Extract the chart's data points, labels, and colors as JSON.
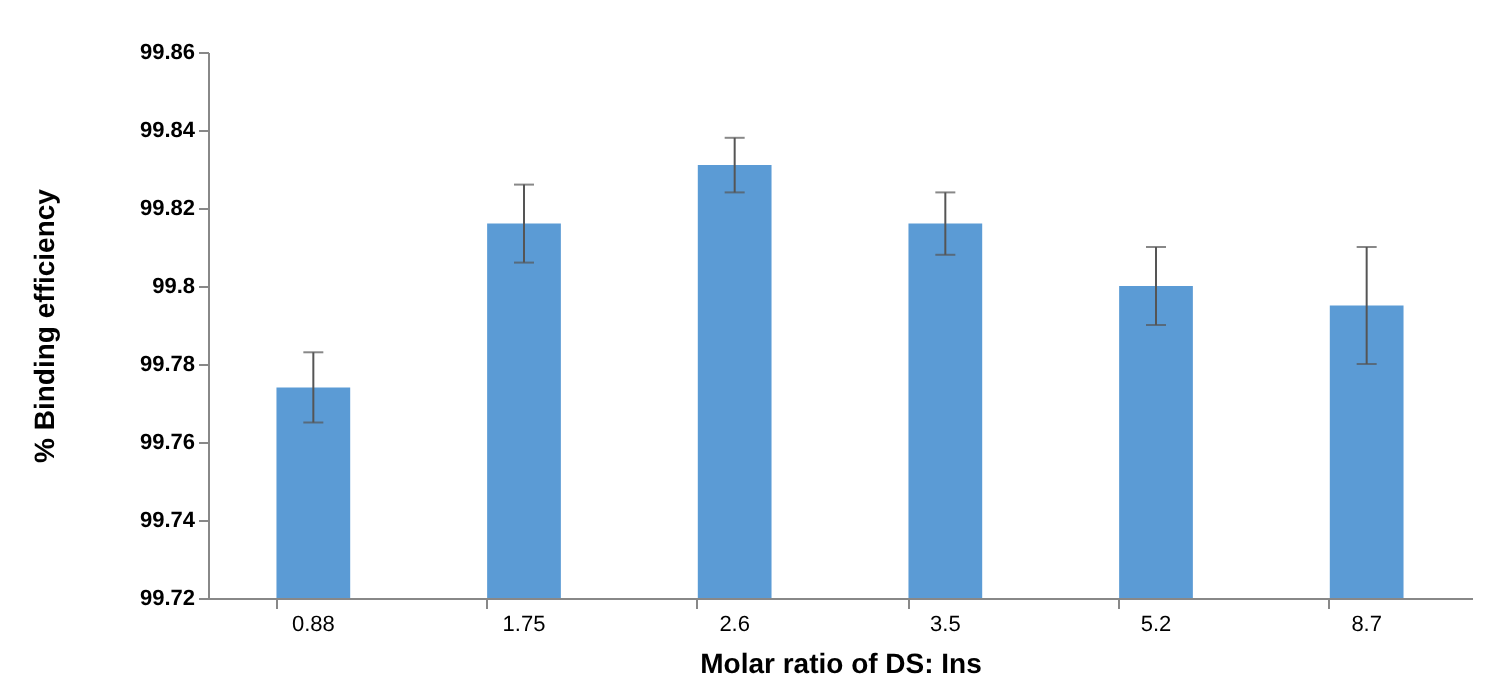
{
  "chart_data": {
    "type": "bar",
    "xlabel": "Molar ratio of DS: Ins",
    "ylabel": "% Binding efficiency",
    "categories": [
      "0.88",
      "1.75",
      "2.6",
      "3.5",
      "5.2",
      "8.7"
    ],
    "values": [
      99.774,
      99.816,
      99.831,
      99.816,
      99.8,
      99.795
    ],
    "errors": [
      0.009,
      0.01,
      0.007,
      0.008,
      0.01,
      0.015
    ],
    "color": "#5b9bd5",
    "ylim": [
      99.72,
      99.86
    ],
    "yticks": [
      99.72,
      99.74,
      99.76,
      99.78,
      99.8,
      99.82,
      99.84,
      99.86
    ],
    "grid": false
  }
}
